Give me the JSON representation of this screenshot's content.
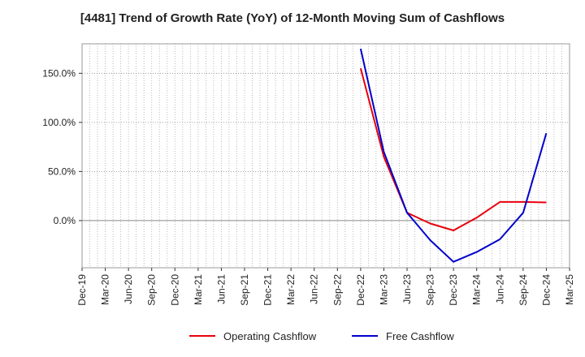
{
  "chart_data": {
    "type": "line",
    "title": "[4481]  Trend of Growth Rate (YoY) of 12-Month Moving Sum of Cashflows",
    "xlabel": "",
    "ylabel": "",
    "categories": [
      "Dec-19",
      "Mar-20",
      "Jun-20",
      "Sep-20",
      "Dec-20",
      "Mar-21",
      "Jun-21",
      "Sep-21",
      "Dec-21",
      "Mar-22",
      "Jun-22",
      "Sep-22",
      "Dec-22",
      "Mar-23",
      "Jun-23",
      "Sep-23",
      "Dec-23",
      "Mar-24",
      "Jun-24",
      "Sep-24",
      "Dec-24",
      "Mar-25"
    ],
    "ylim": [
      -48,
      180
    ],
    "yticks": [
      0,
      50,
      100,
      150
    ],
    "ytick_labels": [
      "0.0%",
      "50.0%",
      "100.0%",
      "150.0%"
    ],
    "grid": true,
    "legend_position": "bottom-center",
    "series": [
      {
        "name": "Operating Cashflow",
        "color": "#e8000b",
        "x": [
          "Dec-22",
          "Mar-23",
          "Jun-23",
          "Sep-23",
          "Dec-23",
          "Mar-24",
          "Jun-24",
          "Sep-24",
          "Dec-24"
        ],
        "values": [
          155,
          65,
          8,
          -3,
          -10,
          3,
          19,
          19,
          18.5
        ]
      },
      {
        "name": "Free Cashflow",
        "color": "#0000cc",
        "x": [
          "Dec-22",
          "Mar-23",
          "Jun-23",
          "Sep-23",
          "Dec-23",
          "Mar-24",
          "Jun-24",
          "Sep-24",
          "Dec-24"
        ],
        "values": [
          175,
          70,
          8,
          -20,
          -42,
          -32,
          -19,
          8,
          89
        ]
      }
    ]
  }
}
